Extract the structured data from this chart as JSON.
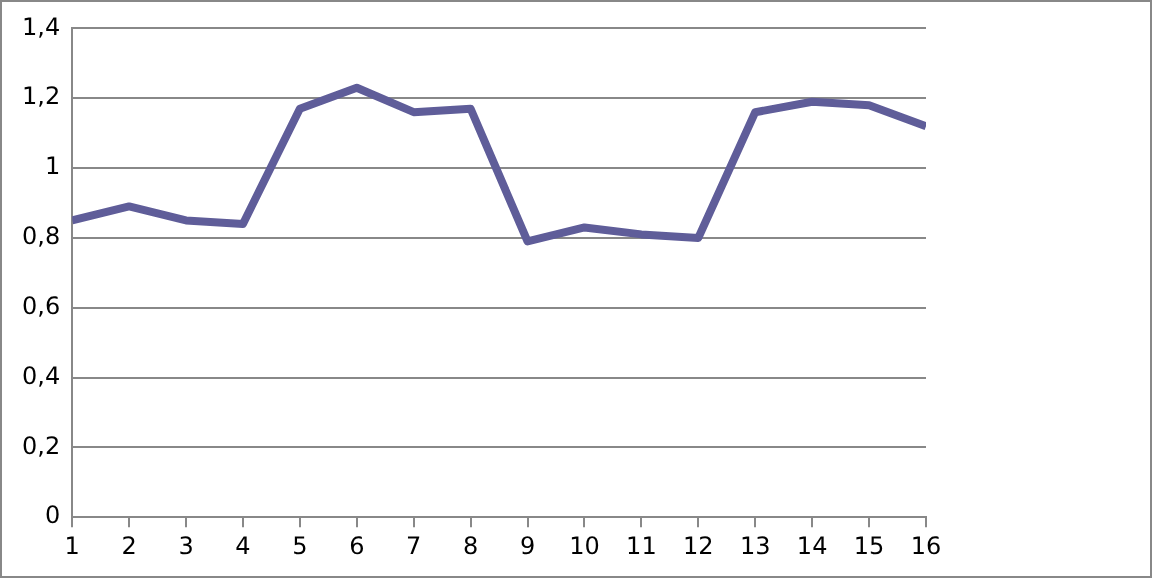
{
  "chart_data": {
    "type": "line",
    "x": [
      1,
      2,
      3,
      4,
      5,
      6,
      7,
      8,
      9,
      10,
      11,
      12,
      13,
      14,
      15,
      16
    ],
    "series": [
      {
        "color": "#5f5d99",
        "values": [
          0.85,
          0.89,
          0.85,
          0.84,
          1.17,
          1.23,
          1.16,
          1.17,
          0.79,
          0.83,
          0.81,
          0.8,
          1.16,
          1.19,
          1.18,
          1.12
        ]
      }
    ],
    "xlim": [
      1,
      16
    ],
    "xticks": [
      1,
      2,
      3,
      4,
      5,
      6,
      7,
      8,
      9,
      10,
      11,
      12,
      13,
      14,
      15,
      16
    ],
    "ylim": [
      0,
      1.4
    ],
    "yticks": [
      0,
      {
        "value": 0.2,
        "label": "0,2"
      },
      {
        "value": 0.4,
        "label": "0,4"
      },
      {
        "value": 0.6,
        "label": "0,6"
      },
      {
        "value": 0.8,
        "label": "0,8"
      },
      1,
      {
        "value": 1.2,
        "label": "1,2"
      },
      {
        "value": 1.4,
        "label": "1,4"
      }
    ],
    "grid": "y",
    "legend": false,
    "marker": "none",
    "line_style": "solid"
  }
}
